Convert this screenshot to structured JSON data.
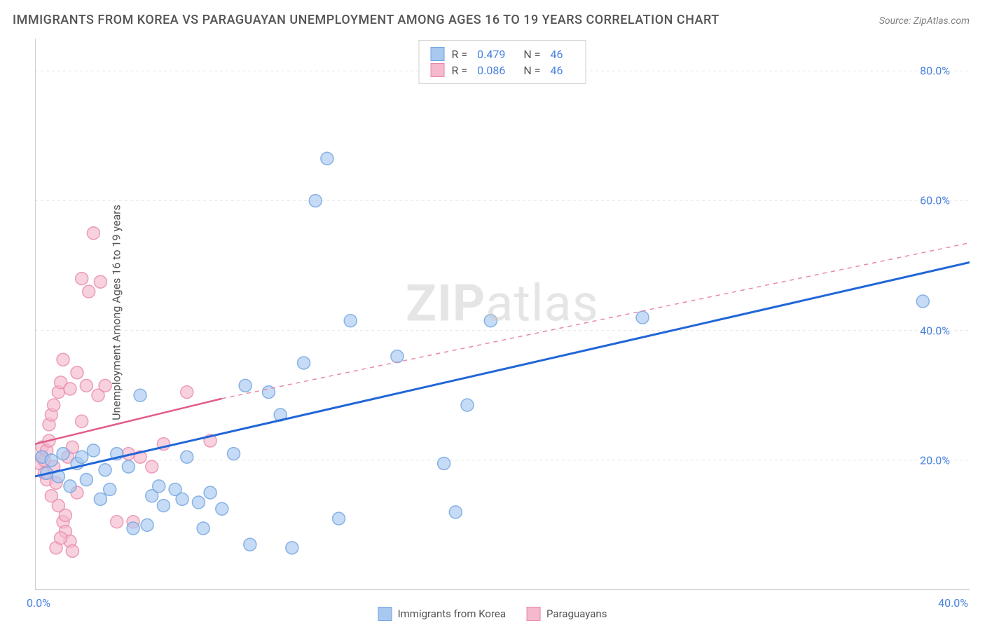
{
  "title": "IMMIGRANTS FROM KOREA VS PARAGUAYAN UNEMPLOYMENT AMONG AGES 16 TO 19 YEARS CORRELATION CHART",
  "source": "Source: ZipAtlas.com",
  "watermark_bold": "ZIP",
  "watermark_rest": "atlas",
  "y_axis_label": "Unemployment Among Ages 16 to 19 years",
  "chart": {
    "type": "scatter",
    "xlim": [
      0,
      40
    ],
    "ylim": [
      0,
      85
    ],
    "x_ticks": [
      0,
      40
    ],
    "x_tick_labels": [
      "0.0%",
      "40.0%"
    ],
    "y_ticks": [
      20,
      40,
      60,
      80
    ],
    "y_tick_labels": [
      "20.0%",
      "40.0%",
      "60.0%",
      "80.0%"
    ],
    "x_minor_ticks": [
      5,
      10,
      15,
      20,
      25,
      30,
      35
    ],
    "grid_color": "#e8e8e8",
    "axis_color": "#c0c0c0",
    "background_color": "#ffffff",
    "series": [
      {
        "name": "Immigrants from Korea",
        "color_fill": "#a8c8f0",
        "color_stroke": "#6fa3e0",
        "opacity": 0.65,
        "marker_radius": 9,
        "R": "0.479",
        "N": "46",
        "points": [
          [
            0.3,
            20.5
          ],
          [
            0.5,
            18.0
          ],
          [
            0.7,
            20.0
          ],
          [
            1.0,
            17.5
          ],
          [
            1.2,
            21.0
          ],
          [
            1.5,
            16.0
          ],
          [
            1.8,
            19.5
          ],
          [
            2.0,
            20.5
          ],
          [
            2.2,
            17.0
          ],
          [
            2.5,
            21.5
          ],
          [
            3.0,
            18.5
          ],
          [
            3.2,
            15.5
          ],
          [
            3.5,
            21.0
          ],
          [
            4.0,
            19.0
          ],
          [
            4.2,
            9.5
          ],
          [
            4.5,
            30.0
          ],
          [
            5.0,
            14.5
          ],
          [
            5.3,
            16.0
          ],
          [
            5.5,
            13.0
          ],
          [
            6.0,
            15.5
          ],
          [
            6.3,
            14.0
          ],
          [
            6.5,
            20.5
          ],
          [
            7.0,
            13.5
          ],
          [
            7.2,
            9.5
          ],
          [
            7.5,
            15.0
          ],
          [
            8.0,
            12.5
          ],
          [
            8.5,
            21.0
          ],
          [
            9.0,
            31.5
          ],
          [
            9.2,
            7.0
          ],
          [
            10.0,
            30.5
          ],
          [
            10.5,
            27.0
          ],
          [
            11.0,
            6.5
          ],
          [
            11.5,
            35.0
          ],
          [
            12.0,
            60.0
          ],
          [
            12.5,
            66.5
          ],
          [
            13.0,
            11.0
          ],
          [
            13.5,
            41.5
          ],
          [
            15.5,
            36.0
          ],
          [
            17.5,
            19.5
          ],
          [
            18.0,
            12.0
          ],
          [
            18.5,
            28.5
          ],
          [
            19.5,
            41.5
          ],
          [
            26.0,
            42.0
          ],
          [
            38.0,
            44.5
          ],
          [
            2.8,
            14.0
          ],
          [
            4.8,
            10.0
          ]
        ],
        "trend": {
          "x1": 0,
          "y1": 17.5,
          "x2": 40,
          "y2": 50.5,
          "color": "#2166d8",
          "width": 3
        }
      },
      {
        "name": "Paraguayans",
        "color_fill": "#f5b8cc",
        "color_stroke": "#e888aa",
        "opacity": 0.65,
        "marker_radius": 9,
        "R": "0.086",
        "N": "46",
        "points": [
          [
            0.2,
            19.5
          ],
          [
            0.3,
            20.5
          ],
          [
            0.3,
            22.0
          ],
          [
            0.4,
            18.0
          ],
          [
            0.4,
            20.0
          ],
          [
            0.5,
            21.5
          ],
          [
            0.5,
            17.0
          ],
          [
            0.6,
            23.0
          ],
          [
            0.6,
            25.5
          ],
          [
            0.7,
            14.5
          ],
          [
            0.7,
            27.0
          ],
          [
            0.8,
            28.5
          ],
          [
            0.8,
            19.0
          ],
          [
            0.9,
            16.5
          ],
          [
            1.0,
            30.5
          ],
          [
            1.0,
            13.0
          ],
          [
            1.1,
            32.0
          ],
          [
            1.2,
            10.5
          ],
          [
            1.2,
            35.5
          ],
          [
            1.3,
            9.0
          ],
          [
            1.4,
            20.5
          ],
          [
            1.5,
            31.0
          ],
          [
            1.5,
            7.5
          ],
          [
            1.6,
            22.0
          ],
          [
            1.8,
            33.5
          ],
          [
            1.8,
            15.0
          ],
          [
            2.0,
            26.0
          ],
          [
            2.0,
            48.0
          ],
          [
            2.2,
            31.5
          ],
          [
            2.3,
            46.0
          ],
          [
            2.5,
            55.0
          ],
          [
            2.7,
            30.0
          ],
          [
            2.8,
            47.5
          ],
          [
            3.0,
            31.5
          ],
          [
            3.5,
            10.5
          ],
          [
            4.0,
            21.0
          ],
          [
            4.2,
            10.5
          ],
          [
            4.5,
            20.5
          ],
          [
            5.0,
            19.0
          ],
          [
            5.5,
            22.5
          ],
          [
            6.5,
            30.5
          ],
          [
            7.5,
            23.0
          ],
          [
            0.9,
            6.5
          ],
          [
            1.1,
            8.0
          ],
          [
            1.6,
            6.0
          ],
          [
            1.3,
            11.5
          ]
        ],
        "trend": {
          "x1": 0,
          "y1": 22.5,
          "x2": 8,
          "y2": 29.5,
          "color": "#e35b8a",
          "width": 2.5
        },
        "trend_dashed": {
          "x1": 8,
          "y1": 29.5,
          "x2": 40,
          "y2": 53.5,
          "color": "#e888aa",
          "width": 1.5
        }
      }
    ]
  },
  "legend_top": [
    {
      "swatch_fill": "#a8c8f0",
      "swatch_stroke": "#6fa3e0",
      "R_label": "R =",
      "R_val": "0.479",
      "N_label": "N =",
      "N_val": "46"
    },
    {
      "swatch_fill": "#f5b8cc",
      "swatch_stroke": "#e888aa",
      "R_label": "R =",
      "R_val": "0.086",
      "N_label": "N =",
      "N_val": "46"
    }
  ],
  "legend_bottom": [
    {
      "swatch_fill": "#a8c8f0",
      "swatch_stroke": "#6fa3e0",
      "label": "Immigrants from Korea"
    },
    {
      "swatch_fill": "#f5b8cc",
      "swatch_stroke": "#e888aa",
      "label": "Paraguayans"
    }
  ]
}
